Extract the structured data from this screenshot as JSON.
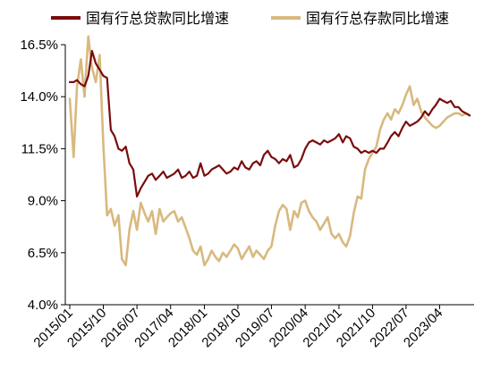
{
  "chart_data": {
    "type": "line",
    "title": "",
    "xlabel": "",
    "ylabel": "",
    "x_tick_labels": [
      "2015/01",
      "2015/10",
      "2016/07",
      "2017/04",
      "2018/01",
      "2018/10",
      "2019/07",
      "2020/04",
      "2021/01",
      "2021/10",
      "2022/07",
      "2023/04"
    ],
    "y_tick_labels": [
      "4.0%",
      "6.5%",
      "9.0%",
      "11.5%",
      "14.0%",
      "16.5%"
    ],
    "ylim": [
      4.0,
      16.5
    ],
    "legend_position": "top",
    "series": [
      {
        "name": "国有行总贷款同比增速",
        "color": "#7a0c0c",
        "x": [
          "2015-01",
          "2015-02",
          "2015-03",
          "2015-04",
          "2015-05",
          "2015-06",
          "2015-07",
          "2015-08",
          "2015-09",
          "2015-10",
          "2015-11",
          "2015-12",
          "2016-01",
          "2016-02",
          "2016-03",
          "2016-04",
          "2016-05",
          "2016-06",
          "2016-07",
          "2016-08",
          "2016-09",
          "2016-10",
          "2016-11",
          "2016-12",
          "2017-01",
          "2017-02",
          "2017-03",
          "2017-04",
          "2017-05",
          "2017-06",
          "2017-07",
          "2017-08",
          "2017-09",
          "2017-10",
          "2017-11",
          "2017-12",
          "2018-01",
          "2018-02",
          "2018-03",
          "2018-04",
          "2018-05",
          "2018-06",
          "2018-07",
          "2018-08",
          "2018-09",
          "2018-10",
          "2018-11",
          "2018-12",
          "2019-01",
          "2019-02",
          "2019-03",
          "2019-04",
          "2019-05",
          "2019-06",
          "2019-07",
          "2019-08",
          "2019-09",
          "2019-10",
          "2019-11",
          "2019-12",
          "2020-01",
          "2020-02",
          "2020-03",
          "2020-04",
          "2020-05",
          "2020-06",
          "2020-07",
          "2020-08",
          "2020-09",
          "2020-10",
          "2020-11",
          "2020-12",
          "2021-01",
          "2021-02",
          "2021-03",
          "2021-04",
          "2021-05",
          "2021-06",
          "2021-07",
          "2021-08",
          "2021-09",
          "2021-10",
          "2021-11",
          "2021-12",
          "2022-01",
          "2022-02",
          "2022-03",
          "2022-04",
          "2022-05",
          "2022-06",
          "2022-07",
          "2022-08",
          "2022-09",
          "2022-10",
          "2022-11",
          "2022-12",
          "2023-01",
          "2023-02",
          "2023-03",
          "2023-04",
          "2023-05",
          "2023-06",
          "2023-07",
          "2023-08",
          "2023-09",
          "2023-10",
          "2023-11",
          "2023-12"
        ],
        "values": [
          14.7,
          14.7,
          14.8,
          14.6,
          14.5,
          15.0,
          16.2,
          15.6,
          15.3,
          15.0,
          14.9,
          12.4,
          12.1,
          11.5,
          11.4,
          11.6,
          10.8,
          10.5,
          9.2,
          9.6,
          9.9,
          10.2,
          10.3,
          10.0,
          10.2,
          10.4,
          10.1,
          10.2,
          10.3,
          10.5,
          10.1,
          10.2,
          10.4,
          10.1,
          10.2,
          10.8,
          10.2,
          10.3,
          10.5,
          10.6,
          10.7,
          10.5,
          10.3,
          10.4,
          10.6,
          10.5,
          10.9,
          10.6,
          10.5,
          10.8,
          10.9,
          10.7,
          11.2,
          11.4,
          11.1,
          11.0,
          10.8,
          11.0,
          10.9,
          11.2,
          10.6,
          10.7,
          11.0,
          11.5,
          11.8,
          11.9,
          11.8,
          11.7,
          11.9,
          11.8,
          11.9,
          12.0,
          12.2,
          11.8,
          12.1,
          12.0,
          11.6,
          11.5,
          11.3,
          11.4,
          11.3,
          11.4,
          11.3,
          11.5,
          11.5,
          11.8,
          12.1,
          12.3,
          12.1,
          12.5,
          12.8,
          12.6,
          12.7,
          12.8,
          13.0,
          13.3,
          13.1,
          13.4,
          13.6,
          13.9,
          13.8,
          13.7,
          13.8,
          13.5,
          13.5,
          13.3,
          13.2,
          13.1
        ]
      },
      {
        "name": "国有行总存款同比增速",
        "color": "#d8b97f",
        "x": [
          "2015-01",
          "2015-02",
          "2015-03",
          "2015-04",
          "2015-05",
          "2015-06",
          "2015-07",
          "2015-08",
          "2015-09",
          "2015-10",
          "2015-11",
          "2015-12",
          "2016-01",
          "2016-02",
          "2016-03",
          "2016-04",
          "2016-05",
          "2016-06",
          "2016-07",
          "2016-08",
          "2016-09",
          "2016-10",
          "2016-11",
          "2016-12",
          "2017-01",
          "2017-02",
          "2017-03",
          "2017-04",
          "2017-05",
          "2017-06",
          "2017-07",
          "2017-08",
          "2017-09",
          "2017-10",
          "2017-11",
          "2017-12",
          "2018-01",
          "2018-02",
          "2018-03",
          "2018-04",
          "2018-05",
          "2018-06",
          "2018-07",
          "2018-08",
          "2018-09",
          "2018-10",
          "2018-11",
          "2018-12",
          "2019-01",
          "2019-02",
          "2019-03",
          "2019-04",
          "2019-05",
          "2019-06",
          "2019-07",
          "2019-08",
          "2019-09",
          "2019-10",
          "2019-11",
          "2019-12",
          "2020-01",
          "2020-02",
          "2020-03",
          "2020-04",
          "2020-05",
          "2020-06",
          "2020-07",
          "2020-08",
          "2020-09",
          "2020-10",
          "2020-11",
          "2020-12",
          "2021-01",
          "2021-02",
          "2021-03",
          "2021-04",
          "2021-05",
          "2021-06",
          "2021-07",
          "2021-08",
          "2021-09",
          "2021-10",
          "2021-11",
          "2021-12",
          "2022-01",
          "2022-02",
          "2022-03",
          "2022-04",
          "2022-05",
          "2022-06",
          "2022-07",
          "2022-08",
          "2022-09",
          "2022-10",
          "2022-11",
          "2022-12",
          "2023-01",
          "2023-02",
          "2023-03",
          "2023-04",
          "2023-05",
          "2023-06",
          "2023-07",
          "2023-08",
          "2023-09",
          "2023-10",
          "2023-11",
          "2023-12"
        ],
        "values": [
          13.9,
          11.1,
          14.5,
          15.8,
          14.0,
          16.9,
          15.4,
          14.7,
          16.0,
          11.7,
          8.3,
          8.6,
          7.8,
          8.3,
          6.2,
          5.9,
          7.6,
          8.5,
          7.6,
          8.9,
          8.4,
          8.0,
          8.5,
          7.4,
          8.6,
          8.0,
          8.2,
          8.4,
          8.5,
          8.0,
          8.2,
          7.7,
          7.2,
          6.6,
          6.4,
          6.8,
          5.9,
          6.2,
          6.6,
          6.3,
          6.1,
          6.5,
          6.3,
          6.6,
          6.9,
          6.7,
          6.2,
          6.5,
          6.8,
          6.3,
          6.6,
          6.4,
          6.2,
          6.6,
          6.8,
          7.8,
          8.5,
          8.8,
          8.6,
          7.6,
          8.5,
          8.2,
          8.9,
          9.0,
          8.5,
          8.2,
          8.0,
          7.6,
          7.9,
          8.2,
          7.4,
          7.2,
          7.4,
          7.0,
          6.8,
          7.3,
          8.4,
          9.2,
          9.1,
          10.5,
          11.0,
          11.3,
          11.6,
          12.4,
          12.9,
          13.2,
          12.9,
          13.4,
          13.2,
          13.6,
          14.1,
          14.5,
          13.6,
          13.9,
          13.3,
          13.0,
          12.8,
          12.6,
          12.5,
          12.6,
          12.8,
          13.0,
          13.1,
          13.2,
          13.2,
          13.1,
          13.2,
          13.1
        ]
      }
    ]
  }
}
